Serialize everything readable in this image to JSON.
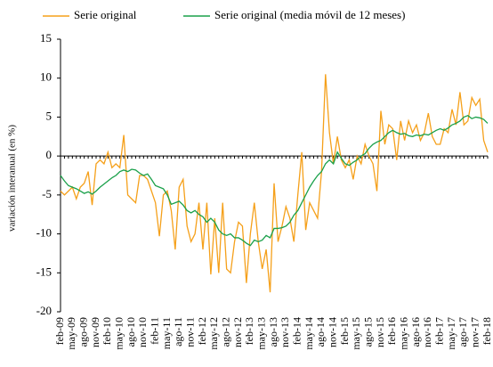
{
  "chart_data": {
    "type": "line",
    "y_label": "variación interanual  (en %)",
    "categories": [
      "feb-09",
      null,
      null,
      "may-09",
      null,
      null,
      "ago-09",
      null,
      null,
      "nov-09",
      null,
      null,
      "feb-10",
      null,
      null,
      "may-10",
      null,
      null,
      "ago-10",
      null,
      null,
      "nov-10",
      null,
      null,
      "feb-11",
      null,
      null,
      "may-11",
      null,
      null,
      "ago-11",
      null,
      null,
      "nov-11",
      null,
      null,
      "feb-12",
      null,
      null,
      "may-12",
      null,
      null,
      "ago-12",
      null,
      null,
      "nov-12",
      null,
      null,
      "feb-13",
      null,
      null,
      "may-13",
      null,
      null,
      "ago-13",
      null,
      null,
      "nov-13",
      null,
      null,
      "feb-14",
      null,
      null,
      "may-14",
      null,
      null,
      "ago-14",
      null,
      null,
      "nov-14",
      null,
      null,
      "feb-15",
      null,
      null,
      "may-15",
      null,
      null,
      "ago-15",
      null,
      null,
      "nov-15",
      null,
      null,
      "feb-16",
      null,
      null,
      "may-16",
      null,
      null,
      "ago-16",
      null,
      null,
      "nov-16",
      null,
      null,
      "feb-17",
      null,
      null,
      "may-17",
      null,
      null,
      "ago-17",
      null,
      null,
      "nov-17",
      null,
      null,
      "feb-18"
    ],
    "series": [
      {
        "name": "Serie original",
        "color": "#f5a01a",
        "values": [
          -4.5,
          -5,
          -4.5,
          -4,
          -5.5,
          -4,
          -3.5,
          -2,
          -6.3,
          -1,
          -0.5,
          -1,
          0.5,
          -1.5,
          -1,
          -1.5,
          2.7,
          -5,
          -5.5,
          -6,
          -2.5,
          -2.5,
          -3,
          -4.5,
          -6,
          -10.3,
          -5,
          -4.5,
          -7,
          -12,
          -4,
          -3,
          -9,
          -11,
          -10,
          -6,
          -12,
          -6,
          -15.2,
          -8,
          -15,
          -6,
          -14.5,
          -15,
          -11,
          -8.5,
          -9,
          -16.3,
          -10,
          -6,
          -11,
          -14.5,
          -12,
          -17.5,
          -3.5,
          -11,
          -9,
          -6.5,
          -8,
          -11,
          -5,
          0.5,
          -9.5,
          -6,
          -7,
          -8,
          -2,
          10.5,
          3,
          -1,
          2.5,
          -0.5,
          -1.5,
          -0.5,
          -3,
          0,
          -1,
          1.5,
          0,
          -1,
          -4.5,
          5.8,
          1.5,
          4,
          3.5,
          -0.5,
          4.5,
          2,
          4.5,
          3,
          4,
          2,
          3,
          5.5,
          2.5,
          1.5,
          1.5,
          3.5,
          3,
          6,
          4,
          8.2,
          4,
          4.5,
          7.5,
          6.5,
          7.3,
          2,
          0.5
        ]
      },
      {
        "name": "Serie original (media móvil de 12 meses)",
        "color": "#1aa04a",
        "values": [
          -2.5,
          -3.2,
          -3.8,
          -4,
          -4.2,
          -4.5,
          -4.8,
          -4.6,
          -4.9,
          -4.5,
          -4,
          -3.6,
          -3.2,
          -2.8,
          -2.5,
          -2,
          -1.8,
          -2,
          -1.7,
          -1.8,
          -2.2,
          -2.5,
          -2.3,
          -3,
          -3.8,
          -4,
          -4.2,
          -5,
          -6.2,
          -6,
          -5.8,
          -6.3,
          -7,
          -7.3,
          -7,
          -7.5,
          -7.8,
          -8.5,
          -8,
          -8.5,
          -9.5,
          -10,
          -10.2,
          -10,
          -10.5,
          -10.5,
          -10.8,
          -11.2,
          -11.5,
          -10.8,
          -11,
          -10.8,
          -10.2,
          -10.5,
          -9.3,
          -9.3,
          -9.2,
          -9,
          -8.5,
          -7.6,
          -7,
          -6,
          -5,
          -4,
          -3.2,
          -2.5,
          -2,
          -1,
          -0.5,
          -1,
          0.5,
          -0.3,
          -1,
          -1.2,
          -0.8,
          -0.5,
          0,
          0.3,
          1,
          1.5,
          1.8,
          2,
          2.5,
          3,
          3.3,
          3,
          2.8,
          2.9,
          2.6,
          2.5,
          2.7,
          2.6,
          2.8,
          2.7,
          3,
          3.3,
          3.5,
          3.3,
          3.6,
          4,
          4.2,
          4.5,
          5,
          5.2,
          4.8,
          5,
          4.9,
          4.7,
          4.2
        ]
      }
    ],
    "ylim": [
      -20,
      15
    ],
    "yticks": [
      15,
      10,
      5,
      0,
      -5,
      -10,
      -15,
      -20
    ],
    "grid": false
  }
}
